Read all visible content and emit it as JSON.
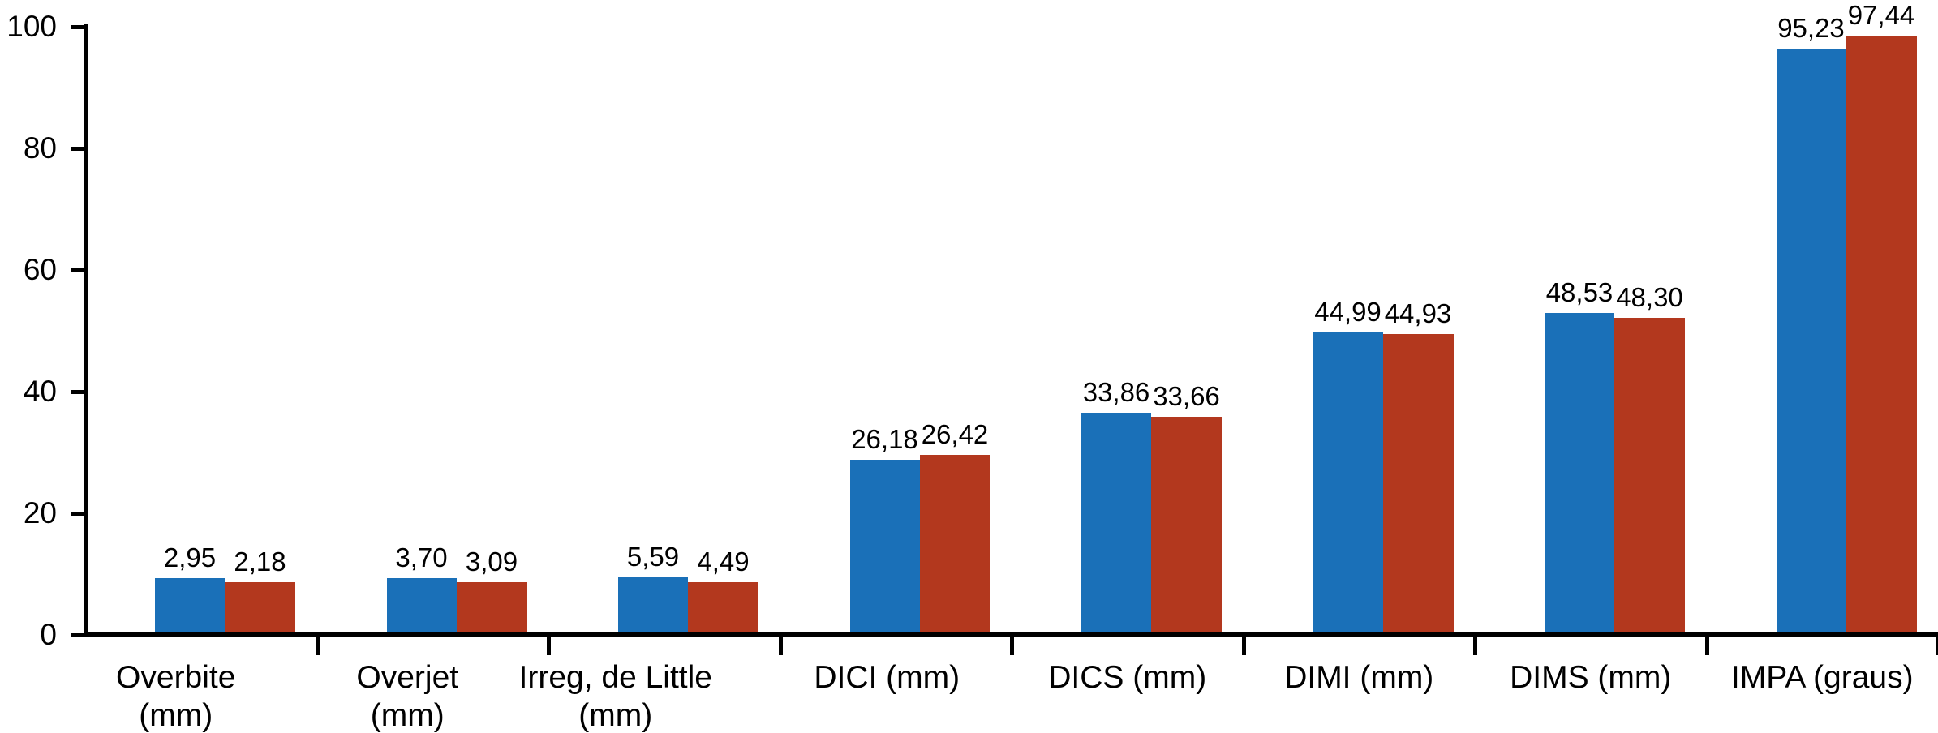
{
  "chart_data": {
    "type": "bar",
    "title": "",
    "legend_position": "none",
    "grid": false,
    "categories": [
      [
        "Overbite",
        "(mm)"
      ],
      [
        "Overjet",
        "(mm)"
      ],
      [
        "Irreg, de Little",
        "(mm)"
      ],
      [
        "DICI (mm)"
      ],
      [
        "DICS (mm)"
      ],
      [
        "DIMI (mm)"
      ],
      [
        "DIMS (mm)"
      ],
      [
        "IMPA (graus)"
      ]
    ],
    "series": [
      {
        "color": "#1a70b8",
        "values": [
          2.95,
          3.7,
          5.59,
          26.18,
          33.86,
          44.99,
          48.53,
          95.23
        ],
        "labels": [
          "2,95",
          "3,70",
          "5,59",
          "26,18",
          "33,86",
          "44,99",
          "48,53",
          "95,23"
        ],
        "drawn_units": [
          8.9,
          8.9,
          9.1,
          28.4,
          36.1,
          49.3,
          52.5,
          96.0
        ]
      },
      {
        "color": "#b3381e",
        "values": [
          2.18,
          3.09,
          4.49,
          26.42,
          33.66,
          44.93,
          48.3,
          97.44
        ],
        "labels": [
          "2,18",
          "3,09",
          "4,49",
          "26,42",
          "33,66",
          "44,93",
          "48,30",
          "97,44"
        ],
        "drawn_units": [
          8.3,
          8.3,
          8.3,
          29.2,
          35.5,
          49.1,
          51.7,
          98.1
        ]
      }
    ],
    "y_axis": {
      "range": [
        0,
        100
      ],
      "ticks": [
        0,
        20,
        40,
        60,
        80,
        100
      ],
      "tick_labels": [
        "0",
        "20",
        "40",
        "60",
        "80",
        "100"
      ]
    }
  }
}
